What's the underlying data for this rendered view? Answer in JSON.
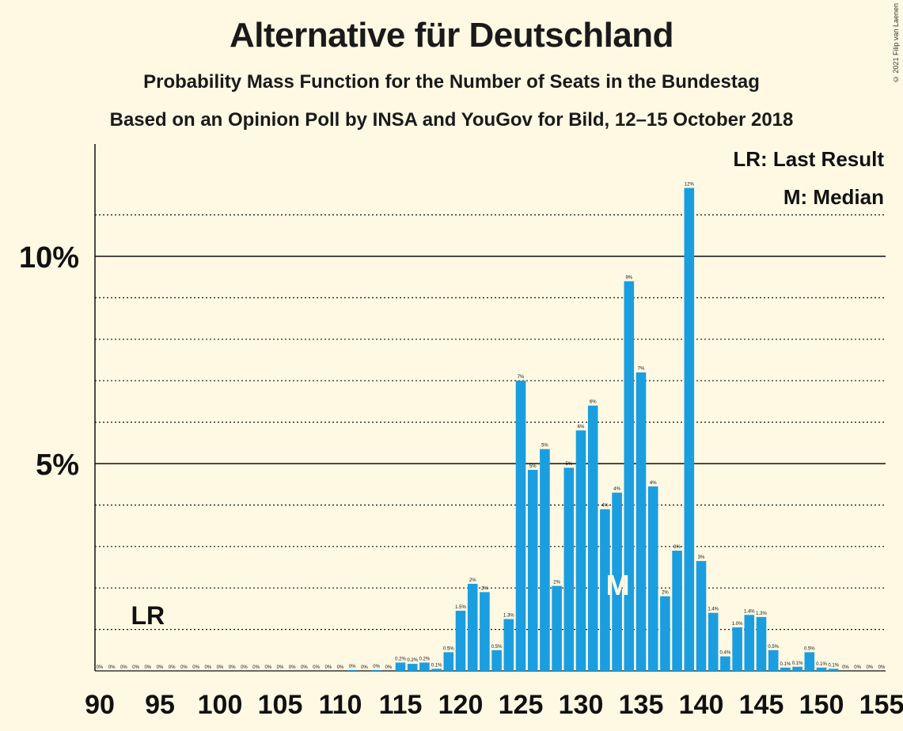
{
  "title": "Alternative für Deutschland",
  "subtitle": "Probability Mass Function for the Number of Seats in the Bundestag",
  "subtitle2": "Based on an Opinion Poll by INSA and YouGov for Bild, 12–15 October 2018",
  "copyright": "© 2021 Filip van Laenen",
  "legend": {
    "last_result": "LR: Last Result",
    "median": "M: Median"
  },
  "colors": {
    "bar": "#1a9ee0",
    "background": "#fff9e3"
  },
  "chart_data": {
    "type": "bar",
    "x": [
      90,
      91,
      92,
      93,
      94,
      95,
      96,
      97,
      98,
      99,
      100,
      101,
      102,
      103,
      104,
      105,
      106,
      107,
      108,
      109,
      110,
      111,
      112,
      113,
      114,
      115,
      116,
      117,
      118,
      119,
      120,
      121,
      122,
      123,
      124,
      125,
      126,
      127,
      128,
      129,
      130,
      131,
      132,
      133,
      134,
      135,
      136,
      137,
      138,
      139,
      140,
      141,
      142,
      143,
      144,
      145,
      146,
      147,
      148,
      149,
      150,
      151,
      152,
      153,
      154,
      155
    ],
    "values": [
      0,
      0,
      0,
      0,
      0,
      0,
      0,
      0,
      0,
      0,
      0,
      0,
      0,
      0,
      0,
      0,
      0,
      0,
      0,
      0,
      0,
      0.02,
      0,
      0.02,
      0,
      0.2,
      0.17,
      0.2,
      0.05,
      0.45,
      1.45,
      2.1,
      1.9,
      0.5,
      1.25,
      7.0,
      4.85,
      5.35,
      2.05,
      4.9,
      5.8,
      6.4,
      3.9,
      4.3,
      9.4,
      7.2,
      4.45,
      1.8,
      2.9,
      11.65,
      2.65,
      1.4,
      0.35,
      1.05,
      1.35,
      1.3,
      0.5,
      0.08,
      0.1,
      0.45,
      0.08,
      0.05,
      0,
      0,
      0,
      0
    ],
    "labels": [
      "0%",
      "0%",
      "0%",
      "0%",
      "0%",
      "0%",
      "0%",
      "0%",
      "0%",
      "0%",
      "0%",
      "0%",
      "0%",
      "0%",
      "0%",
      "0%",
      "0%",
      "0%",
      "0%",
      "0%",
      "0%",
      "0%",
      "0%",
      "0%",
      "0%",
      "0.2%",
      "0.2%",
      "0.2%",
      "0.1%",
      "0.5%",
      "1.5%",
      "2%",
      "2%",
      "0.5%",
      "1.3%",
      "7%",
      "5%",
      "5%",
      "2%",
      "5%",
      "6%",
      "6%",
      "4%",
      "4%",
      "9%",
      "7%",
      "4%",
      "2%",
      "3%",
      "12%",
      "3%",
      "1.4%",
      "0.4%",
      "1.0%",
      "1.4%",
      "1.3%",
      "0.5%",
      "0.1%",
      "0.1%",
      "0.5%",
      "0.1%",
      "0.1%",
      "0%",
      "0%",
      "0%",
      "0%"
    ],
    "xticks": [
      "90",
      "95",
      "100",
      "105",
      "110",
      "115",
      "120",
      "125",
      "130",
      "135",
      "140",
      "145",
      "150",
      "155"
    ],
    "yticks": [
      "5%",
      "10%"
    ],
    "ylim": [
      0,
      12.5
    ],
    "last_result": {
      "seats": 94,
      "label": "LR"
    },
    "median": {
      "seats": 133,
      "label": "M"
    }
  }
}
